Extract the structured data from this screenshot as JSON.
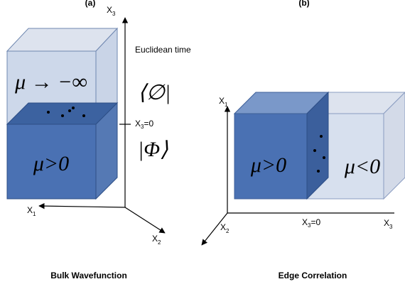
{
  "panel_a": {
    "label": "(a)",
    "axis_vertical": {
      "base": "X",
      "sub": "3"
    },
    "axis_note": "Euclidean time",
    "top_box_label": "μ → −∞",
    "bra": "⟨∅|",
    "boundary": {
      "base": "X",
      "sub": "3",
      "rest": "=0"
    },
    "ket": "|Φ⟩",
    "bottom_box_label": "μ>0",
    "axis_left": {
      "base": "X",
      "sub": "1"
    },
    "axis_diag": {
      "base": "X",
      "sub": "2"
    },
    "caption": "Bulk Wavefunction"
  },
  "panel_b": {
    "label": "(b)",
    "axis_vertical": {
      "base": "X",
      "sub": "1"
    },
    "left_box_label": "μ>0",
    "right_box_label": "μ<0",
    "boundary": {
      "base": "X",
      "sub": "3",
      "rest": "=0"
    },
    "axis_right": {
      "base": "X",
      "sub": "3"
    },
    "axis_diag": {
      "base": "X",
      "sub": "2"
    },
    "caption": "Edge Correlation"
  }
}
